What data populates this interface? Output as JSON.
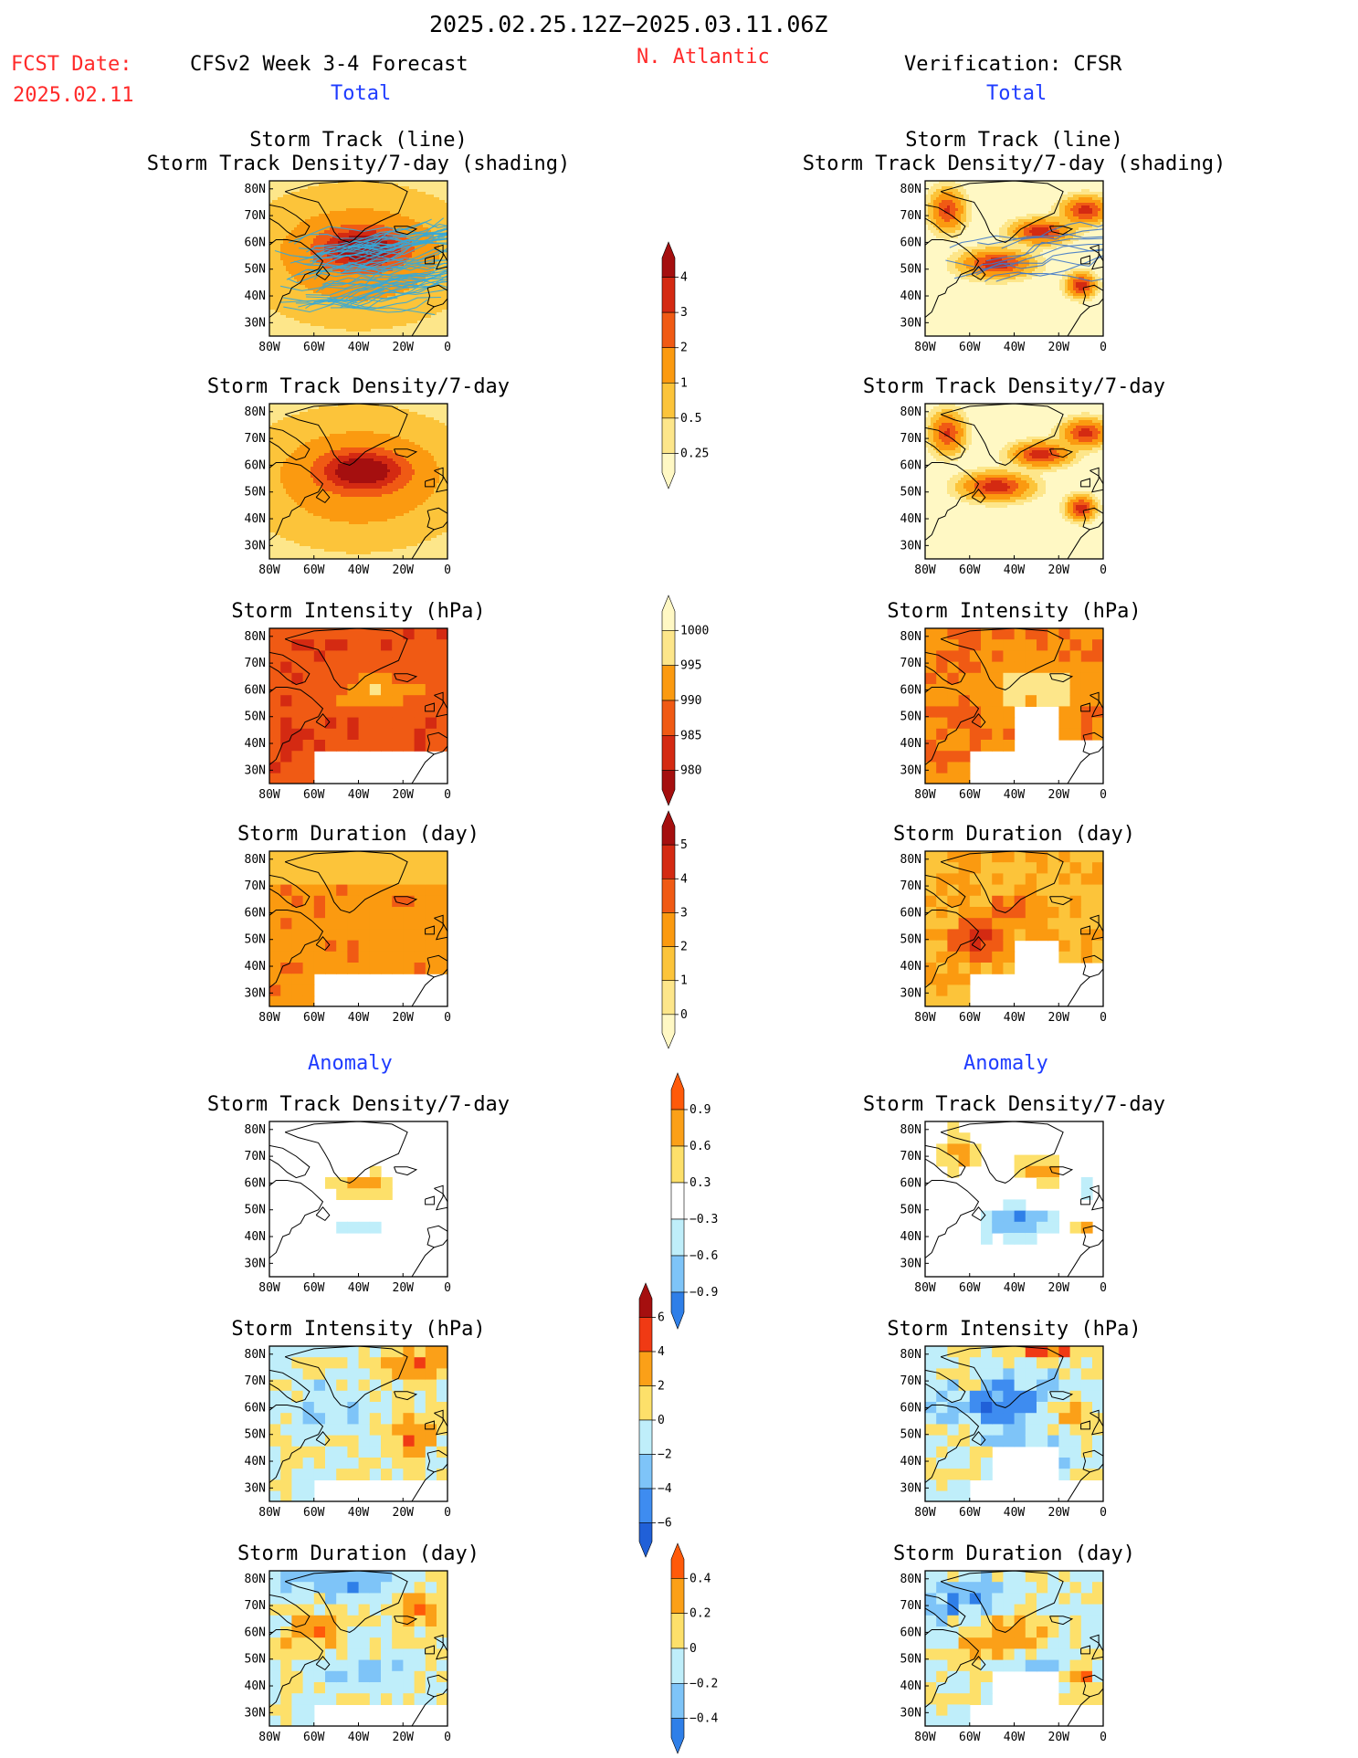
{
  "header": {
    "period": "2025.02.25.12Z−2025.03.11.06Z",
    "fcst_label": "FCST Date:",
    "fcst_date": "2025.02.11",
    "model": "CFSv2 Week 3-4 Forecast",
    "region": "N. Atlantic",
    "verification": "Verification: CFSR"
  },
  "sections": {
    "total": "Total",
    "anomaly": "Anomaly"
  },
  "axes": {
    "lat_labels": [
      "80N",
      "70N",
      "60N",
      "50N",
      "40N",
      "30N"
    ],
    "lon_labels": [
      "80W",
      "60W",
      "40W",
      "20W",
      "0"
    ]
  },
  "panels": {
    "left": [
      {
        "title_lines": [
          "Storm Track (line)",
          "Storm Track Density/7-day (shading)"
        ],
        "field": "density",
        "tracks": true
      },
      {
        "title_lines": [
          "Storm Track Density/7-day"
        ],
        "field": "density"
      },
      {
        "title_lines": [
          "Storm Intensity (hPa)"
        ],
        "field": "intensity"
      },
      {
        "title_lines": [
          "Storm Duration (day)"
        ],
        "field": "duration"
      },
      {
        "title_lines": [
          "Storm Track Density/7-day"
        ],
        "field": "density_anom"
      },
      {
        "title_lines": [
          "Storm Intensity (hPa)"
        ],
        "field": "intensity_anom"
      },
      {
        "title_lines": [
          "Storm Duration (day)"
        ],
        "field": "duration_anom"
      }
    ],
    "right": [
      {
        "title_lines": [
          "Storm Track (line)",
          "Storm Track Density/7-day (shading)"
        ],
        "field": "density",
        "tracks": true
      },
      {
        "title_lines": [
          "Storm Track Density/7-day"
        ],
        "field": "density"
      },
      {
        "title_lines": [
          "Storm Intensity (hPa)"
        ],
        "field": "intensity"
      },
      {
        "title_lines": [
          "Storm Duration (day)"
        ],
        "field": "duration"
      },
      {
        "title_lines": [
          "Storm Track Density/7-day"
        ],
        "field": "density_anom"
      },
      {
        "title_lines": [
          "Storm Intensity (hPa)"
        ],
        "field": "intensity_anom"
      },
      {
        "title_lines": [
          "Storm Duration (day)"
        ],
        "field": "duration_anom"
      }
    ]
  },
  "colorbars": [
    {
      "field": "density",
      "labels": [
        "4",
        "3",
        "2",
        "1",
        "0.5",
        "0.25"
      ],
      "colors": [
        "#a50f0f",
        "#d42a12",
        "#f05a14",
        "#fb9a10",
        "#fcc43a",
        "#fde68a",
        "#fff8c4"
      ]
    },
    {
      "field": "intensity",
      "labels": [
        "1000",
        "995",
        "990",
        "985",
        "980"
      ],
      "colors": [
        "#fff8c4",
        "#fde68a",
        "#fb9a10",
        "#f05a14",
        "#d42a12",
        "#a50f0f"
      ]
    },
    {
      "field": "duration",
      "labels": [
        "5",
        "4",
        "3",
        "2",
        "1",
        "0"
      ],
      "colors": [
        "#a50f0f",
        "#d42a12",
        "#f05a14",
        "#fb9a10",
        "#fcc43a",
        "#fde68a",
        "#fff8c4"
      ]
    },
    {
      "field": "density_anom",
      "labels": [
        "0.9",
        "0.6",
        "0.3",
        "−0.3",
        "−0.6",
        "−0.9"
      ],
      "colors": [
        "#ff5a0a",
        "#fba018",
        "#fde06a",
        "#ffffff",
        "#bfeefa",
        "#7ec4f8",
        "#2f7fe8"
      ]
    },
    {
      "field": "intensity_anom",
      "labels": [
        "6",
        "4",
        "2",
        "0",
        "−2",
        "−4",
        "−6"
      ],
      "colors": [
        "#a50f0f",
        "#f03a14",
        "#fba018",
        "#fde06a",
        "#bfeefa",
        "#7ec4f8",
        "#3e8cf0",
        "#2060d8"
      ]
    },
    {
      "field": "duration_anom",
      "labels": [
        "0.4",
        "0.2",
        "0",
        "−0.2",
        "−0.4"
      ],
      "colors": [
        "#ff5a0a",
        "#fba018",
        "#fde06a",
        "#bfeefa",
        "#7ec4f8",
        "#2f7fe8"
      ]
    }
  ],
  "colors": {
    "title_red": "#ff2a2a",
    "title_blue": "#1f3cff",
    "track_line": "#35a8d8",
    "track_line_obs": "#3f78c8"
  }
}
